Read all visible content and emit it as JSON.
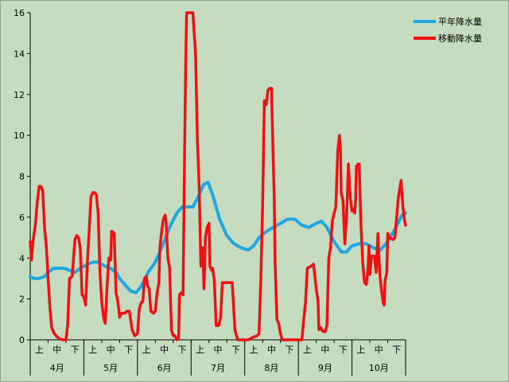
{
  "chart_data": {
    "type": "line",
    "title": "",
    "xlabel": "",
    "ylabel": "",
    "ylim": [
      0,
      16
    ],
    "yticks": [
      "0",
      "2",
      "4",
      "6",
      "8",
      "10",
      "12",
      "14",
      "16"
    ],
    "grid": false,
    "legend_position": "top-right",
    "months": [
      "4月",
      "5月",
      "6月",
      "7月",
      "8月",
      "9月",
      "10月"
    ],
    "decades": [
      "上",
      "中",
      "下"
    ],
    "x_range": [
      0,
      21
    ],
    "series": [
      {
        "name": "平年降水量",
        "color": "#1ea7e1",
        "points": [
          [
            0.0,
            3.1
          ],
          [
            0.2,
            3.0
          ],
          [
            0.5,
            3.0
          ],
          [
            0.8,
            3.1
          ],
          [
            1.0,
            3.3
          ],
          [
            1.3,
            3.5
          ],
          [
            1.6,
            3.5
          ],
          [
            1.9,
            3.5
          ],
          [
            2.2,
            3.4
          ],
          [
            2.5,
            3.3
          ],
          [
            2.8,
            3.5
          ],
          [
            3.2,
            3.7
          ],
          [
            3.5,
            3.8
          ],
          [
            3.8,
            3.8
          ],
          [
            4.2,
            3.6
          ],
          [
            4.5,
            3.5
          ],
          [
            4.8,
            3.3
          ],
          [
            5.0,
            3.0
          ],
          [
            5.3,
            2.7
          ],
          [
            5.6,
            2.4
          ],
          [
            5.9,
            2.3
          ],
          [
            6.2,
            2.6
          ],
          [
            6.6,
            3.3
          ],
          [
            7.0,
            3.8
          ],
          [
            7.4,
            4.6
          ],
          [
            7.8,
            5.5
          ],
          [
            8.2,
            6.2
          ],
          [
            8.5,
            6.5
          ],
          [
            8.8,
            6.5
          ],
          [
            9.1,
            6.5
          ],
          [
            9.4,
            7.0
          ],
          [
            9.7,
            7.6
          ],
          [
            9.95,
            7.7
          ],
          [
            10.2,
            7.1
          ],
          [
            10.6,
            5.9
          ],
          [
            11.0,
            5.1
          ],
          [
            11.4,
            4.7
          ],
          [
            11.8,
            4.5
          ],
          [
            12.2,
            4.4
          ],
          [
            12.5,
            4.6
          ],
          [
            12.8,
            5.0
          ],
          [
            13.2,
            5.3
          ],
          [
            13.6,
            5.5
          ],
          [
            14.0,
            5.7
          ],
          [
            14.4,
            5.9
          ],
          [
            14.8,
            5.9
          ],
          [
            15.2,
            5.6
          ],
          [
            15.6,
            5.5
          ],
          [
            16.0,
            5.7
          ],
          [
            16.3,
            5.8
          ],
          [
            16.6,
            5.5
          ],
          [
            17.0,
            4.8
          ],
          [
            17.4,
            4.3
          ],
          [
            17.7,
            4.3
          ],
          [
            18.0,
            4.6
          ],
          [
            18.4,
            4.7
          ],
          [
            18.8,
            4.7
          ],
          [
            19.2,
            4.5
          ],
          [
            19.6,
            4.4
          ],
          [
            20.0,
            4.8
          ],
          [
            20.4,
            5.4
          ],
          [
            20.8,
            6.1
          ],
          [
            21.0,
            6.2
          ]
        ]
      },
      {
        "name": "移動降水量",
        "color": "#ee1111",
        "points": [
          [
            0.0,
            4.8
          ],
          [
            0.07,
            3.9
          ],
          [
            0.15,
            4.8
          ],
          [
            0.22,
            5.2
          ],
          [
            0.3,
            5.7
          ],
          [
            0.4,
            6.8
          ],
          [
            0.5,
            7.5
          ],
          [
            0.6,
            7.5
          ],
          [
            0.7,
            7.3
          ],
          [
            0.8,
            5.5
          ],
          [
            0.9,
            4.6
          ],
          [
            1.0,
            3.0
          ],
          [
            1.1,
            1.6
          ],
          [
            1.2,
            0.6
          ],
          [
            1.35,
            0.3
          ],
          [
            1.5,
            0.15
          ],
          [
            1.65,
            0.05
          ],
          [
            1.8,
            0.0
          ],
          [
            2.0,
            0.0
          ],
          [
            2.1,
            0.8
          ],
          [
            2.2,
            3.0
          ],
          [
            2.35,
            3.1
          ],
          [
            2.5,
            4.9
          ],
          [
            2.6,
            5.1
          ],
          [
            2.7,
            5.0
          ],
          [
            2.8,
            4.5
          ],
          [
            2.9,
            2.2
          ],
          [
            3.0,
            2.1
          ],
          [
            3.1,
            1.7
          ],
          [
            3.2,
            3.8
          ],
          [
            3.3,
            5.4
          ],
          [
            3.4,
            7.0
          ],
          [
            3.5,
            7.2
          ],
          [
            3.6,
            7.2
          ],
          [
            3.7,
            7.1
          ],
          [
            3.8,
            6.2
          ],
          [
            3.9,
            3.3
          ],
          [
            4.0,
            1.9
          ],
          [
            4.1,
            1.1
          ],
          [
            4.2,
            0.8
          ],
          [
            4.3,
            2.6
          ],
          [
            4.4,
            4.0
          ],
          [
            4.5,
            3.9
          ],
          [
            4.55,
            5.3
          ],
          [
            4.6,
            5.3
          ],
          [
            4.7,
            5.2
          ],
          [
            4.8,
            2.3
          ],
          [
            4.9,
            1.9
          ],
          [
            5.0,
            1.1
          ],
          [
            5.1,
            1.3
          ],
          [
            5.3,
            1.3
          ],
          [
            5.4,
            1.4
          ],
          [
            5.55,
            1.4
          ],
          [
            5.7,
            0.5
          ],
          [
            5.85,
            0.2
          ],
          [
            6.0,
            0.3
          ],
          [
            6.1,
            1.5
          ],
          [
            6.2,
            1.8
          ],
          [
            6.3,
            1.9
          ],
          [
            6.4,
            3.0
          ],
          [
            6.5,
            3.1
          ],
          [
            6.55,
            2.7
          ],
          [
            6.65,
            2.5
          ],
          [
            6.75,
            1.4
          ],
          [
            6.9,
            1.3
          ],
          [
            7.0,
            1.4
          ],
          [
            7.1,
            2.3
          ],
          [
            7.2,
            2.8
          ],
          [
            7.25,
            4.5
          ],
          [
            7.35,
            5.3
          ],
          [
            7.45,
            5.9
          ],
          [
            7.55,
            6.1
          ],
          [
            7.6,
            5.8
          ],
          [
            7.7,
            4.0
          ],
          [
            7.8,
            3.5
          ],
          [
            7.9,
            0.5
          ],
          [
            8.0,
            0.2
          ],
          [
            8.1,
            0.2
          ],
          [
            8.2,
            0.0
          ],
          [
            8.3,
            0.1
          ],
          [
            8.35,
            2.2
          ],
          [
            8.45,
            2.3
          ],
          [
            8.55,
            2.2
          ],
          [
            8.6,
            6.4
          ],
          [
            8.7,
            13.6
          ],
          [
            8.75,
            16.0
          ],
          [
            9.1,
            16.0
          ],
          [
            9.25,
            14.0
          ],
          [
            9.35,
            9.8
          ],
          [
            9.45,
            7.5
          ],
          [
            9.55,
            3.6
          ],
          [
            9.65,
            4.5
          ],
          [
            9.72,
            2.5
          ],
          [
            9.8,
            5.0
          ],
          [
            9.9,
            5.5
          ],
          [
            10.0,
            5.7
          ],
          [
            10.05,
            3.6
          ],
          [
            10.15,
            3.4
          ],
          [
            10.2,
            3.5
          ],
          [
            10.3,
            2.9
          ],
          [
            10.4,
            0.7
          ],
          [
            10.55,
            0.7
          ],
          [
            10.65,
            1.1
          ],
          [
            10.75,
            2.8
          ],
          [
            10.9,
            2.8
          ],
          [
            11.3,
            2.8
          ],
          [
            11.45,
            0.5
          ],
          [
            11.6,
            0.0
          ],
          [
            12.0,
            0.0
          ],
          [
            12.2,
            0.0
          ],
          [
            12.4,
            0.1
          ],
          [
            12.7,
            0.2
          ],
          [
            12.8,
            0.3
          ],
          [
            12.9,
            2.9
          ],
          [
            13.0,
            6.5
          ],
          [
            13.1,
            11.7
          ],
          [
            13.2,
            11.5
          ],
          [
            13.3,
            12.2
          ],
          [
            13.4,
            12.3
          ],
          [
            13.5,
            12.3
          ],
          [
            13.55,
            10.3
          ],
          [
            13.65,
            7.0
          ],
          [
            13.7,
            3.8
          ],
          [
            13.8,
            1.0
          ],
          [
            13.9,
            0.8
          ],
          [
            14.0,
            0.3
          ],
          [
            14.1,
            0.0
          ],
          [
            14.5,
            0.0
          ],
          [
            15.0,
            0.0
          ],
          [
            15.2,
            0.0
          ],
          [
            15.3,
            1.0
          ],
          [
            15.4,
            1.8
          ],
          [
            15.5,
            3.5
          ],
          [
            15.7,
            3.6
          ],
          [
            15.85,
            3.7
          ],
          [
            15.95,
            2.9
          ],
          [
            16.0,
            2.5
          ],
          [
            16.1,
            1.9
          ],
          [
            16.15,
            0.5
          ],
          [
            16.25,
            0.6
          ],
          [
            16.3,
            0.5
          ],
          [
            16.4,
            0.4
          ],
          [
            16.5,
            0.4
          ],
          [
            16.6,
            0.7
          ],
          [
            16.7,
            4.0
          ],
          [
            16.8,
            4.5
          ],
          [
            16.9,
            5.8
          ],
          [
            16.95,
            6.0
          ],
          [
            17.0,
            6.2
          ],
          [
            17.1,
            6.5
          ],
          [
            17.2,
            9.2
          ],
          [
            17.3,
            10.0
          ],
          [
            17.35,
            9.5
          ],
          [
            17.4,
            7.2
          ],
          [
            17.5,
            6.8
          ],
          [
            17.6,
            4.7
          ],
          [
            17.7,
            6.0
          ],
          [
            17.8,
            8.6
          ],
          [
            17.9,
            7.0
          ],
          [
            18.0,
            6.3
          ],
          [
            18.1,
            6.4
          ],
          [
            18.15,
            6.2
          ],
          [
            18.2,
            6.8
          ],
          [
            18.25,
            8.5
          ],
          [
            18.35,
            8.6
          ],
          [
            18.4,
            8.6
          ],
          [
            18.5,
            5.7
          ],
          [
            18.6,
            3.8
          ],
          [
            18.7,
            2.8
          ],
          [
            18.8,
            2.7
          ],
          [
            18.9,
            3.5
          ],
          [
            18.95,
            4.6
          ],
          [
            19.0,
            3.2
          ],
          [
            19.1,
            4.1
          ],
          [
            19.25,
            4.1
          ],
          [
            19.35,
            3.3
          ],
          [
            19.45,
            5.2
          ],
          [
            19.55,
            3.3
          ],
          [
            19.65,
            2.4
          ],
          [
            19.75,
            1.8
          ],
          [
            19.8,
            1.7
          ],
          [
            19.85,
            2.9
          ],
          [
            19.95,
            3.3
          ],
          [
            20.0,
            5.2
          ],
          [
            20.1,
            5.0
          ],
          [
            20.3,
            4.9
          ],
          [
            20.4,
            5.0
          ],
          [
            20.6,
            7.0
          ],
          [
            20.75,
            7.8
          ],
          [
            20.85,
            6.5
          ],
          [
            20.95,
            5.8
          ],
          [
            21.0,
            5.6
          ]
        ]
      }
    ]
  }
}
